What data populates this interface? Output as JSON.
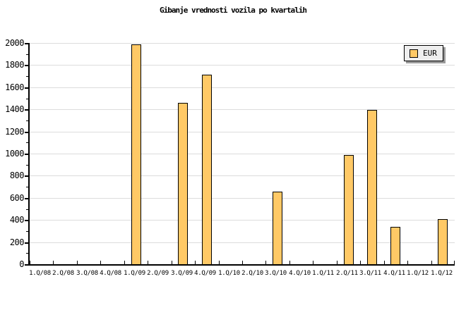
{
  "title": "Gibanje vrednosti vozila po kvartalih",
  "legend": {
    "label": "EUR"
  },
  "colors": {
    "bar_fill": "#FFC966",
    "bar_border": "#000000",
    "grid": "#DCDCDC",
    "axis": "#000000",
    "legend_bg": "#EEEEEE",
    "legend_shadow": "#999999",
    "background": "#FFFFFF"
  },
  "chart_data": {
    "type": "bar",
    "title": "Gibanje vrednosti vozila po kvartalih",
    "categories": [
      "1.Q/08",
      "2.Q/08",
      "3.Q/08",
      "4.Q/08",
      "1.Q/09",
      "2.Q/09",
      "3.Q/09",
      "4.Q/09",
      "1.Q/10",
      "2.Q/10",
      "3.Q/10",
      "4.Q/10",
      "1.Q/11",
      "2.Q/11",
      "3.Q/11",
      "4.Q/11",
      "1.Q/12",
      "1.Q/12"
    ],
    "series": [
      {
        "name": "EUR",
        "values": [
          null,
          null,
          null,
          null,
          1980,
          null,
          1450,
          1710,
          null,
          null,
          650,
          null,
          null,
          980,
          1390,
          330,
          null,
          400
        ]
      }
    ],
    "xlabel": "",
    "ylabel": "",
    "ylim": [
      0,
      2000
    ],
    "ytick_step": 200,
    "ytick_minor_step": 100,
    "grid": true,
    "legend_position": "top-right"
  }
}
